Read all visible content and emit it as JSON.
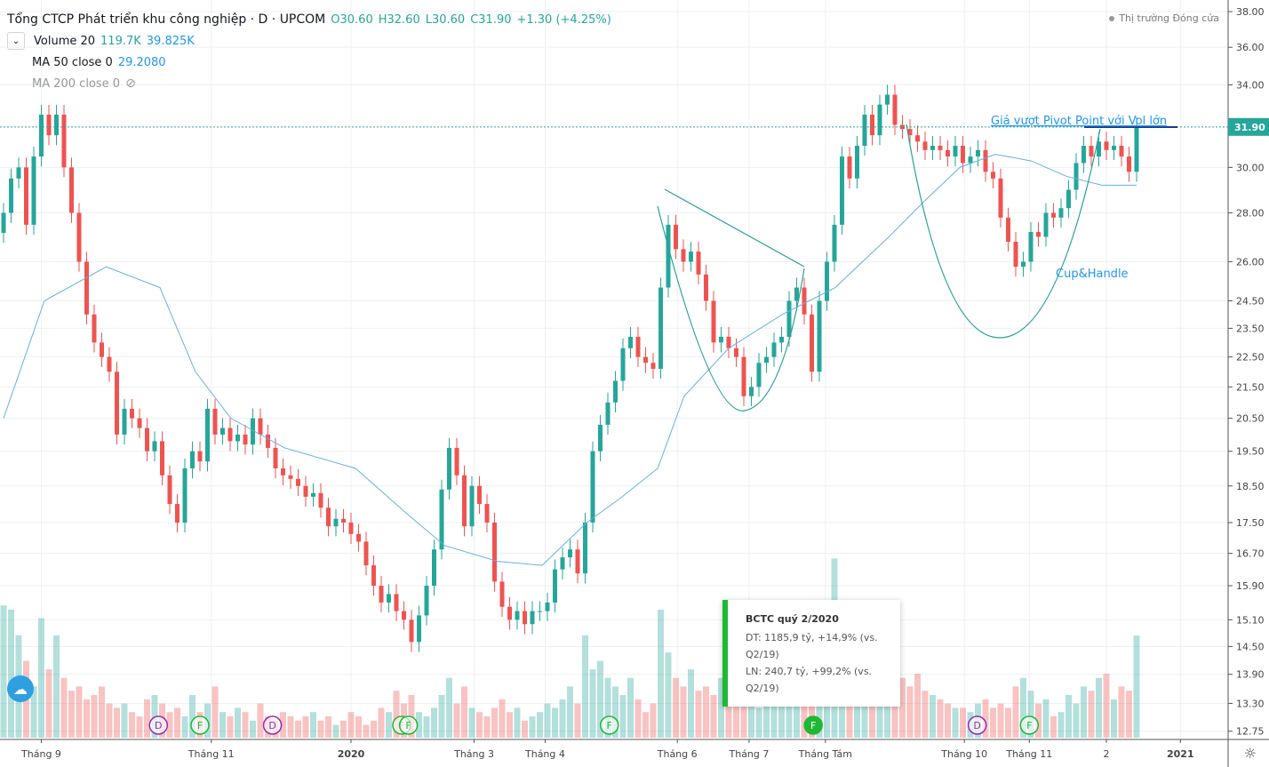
{
  "header": {
    "title": "Tổng CTCP Phát triển khu công nghiệp · D · UPCOM",
    "open": "O30.60",
    "high": "H32.60",
    "low": "L30.60",
    "close": "C31.90",
    "change": "+1.30 (+4.25%)"
  },
  "indicators": {
    "volume_label": "Volume 20",
    "volume_val": "119.7K",
    "volume_ma": "39.825K",
    "ma50_label": "MA 50 close 0",
    "ma50_val": "29.2080",
    "ma200_label": "MA 200 close 0"
  },
  "market_status": "Thị trường Đóng cửa",
  "tooltip": {
    "title": "BCTC quý 2/2020",
    "line1": "DT: 1185,9 tỷ, +14,9% (vs. Q2/19)",
    "line2": "LN: 240,7 tỷ, +99,2% (vs. Q2/19)"
  },
  "annotations": {
    "pivot": "Giá vượt Pivot Point với Vol lớn",
    "cup": "Cup&Handle"
  },
  "colors": {
    "up": "#26a69a",
    "down": "#ef5350",
    "ma": "#64b0ea"
  },
  "chart_data": {
    "type": "candlestick",
    "y_ticks": [
      "38.00",
      "36.00",
      "34.00",
      "30.00",
      "28.00",
      "26.00",
      "24.50",
      "23.50",
      "22.50",
      "21.50",
      "20.50",
      "19.50",
      "18.50",
      "17.50",
      "16.70",
      "15.90",
      "15.10",
      "14.50",
      "13.90",
      "13.30",
      "12.75"
    ],
    "last_price": "31.90",
    "x_ticks": [
      {
        "label": "Tháng 9",
        "i": 5
      },
      {
        "label": "Tháng 11",
        "i": 27.5
      },
      {
        "label": "2020",
        "i": 46
      },
      {
        "label": "Tháng 3",
        "i": 62.3
      },
      {
        "label": "Tháng 4",
        "i": 71.7
      },
      {
        "label": "Tháng 6",
        "i": 89.2
      },
      {
        "label": "Tháng 7",
        "i": 98.7
      },
      {
        "label": "Tháng Tám",
        "i": 108.8
      },
      {
        "label": "Tháng 10",
        "i": 127.2
      },
      {
        "label": "Tháng 11",
        "i": 135.8
      },
      {
        "label": "2",
        "i": 146
      },
      {
        "label": "2021",
        "i": 155.8
      }
    ],
    "closes": [
      28,
      29.5,
      30,
      27.5,
      30.5,
      32.5,
      31.5,
      32.5,
      30,
      28,
      26,
      24,
      23,
      22.5,
      22,
      20,
      20.8,
      20.5,
      20.2,
      19.5,
      19.8,
      18.8,
      18,
      17.5,
      19,
      19.5,
      19.2,
      20.8,
      20,
      20.2,
      19.8,
      20,
      19.7,
      20.5,
      20,
      19.6,
      19,
      18.8,
      18.7,
      18.5,
      18.2,
      18.3,
      17.9,
      17.4,
      17.6,
      17.5,
      17.2,
      17,
      16.4,
      15.9,
      15.5,
      15.7,
      15.3,
      15.1,
      14.6,
      15.2,
      15.9,
      16.8,
      18.4,
      19.6,
      18.8,
      17.4,
      18.5,
      18,
      17.5,
      16,
      15.4,
      15.1,
      15.3,
      15,
      15.3,
      15.3,
      15.5,
      16.3,
      16.6,
      16.8,
      16.2,
      17.5,
      19.5,
      20.3,
      21,
      21.7,
      22.8,
      23.2,
      22.5,
      22.3,
      22.1,
      25,
      27.5,
      26.5,
      26,
      26.4,
      25.5,
      24.5,
      23,
      23.2,
      22.8,
      22.5,
      21.2,
      21.5,
      22.3,
      22.5,
      23,
      23.2,
      24.5,
      25,
      24,
      22,
      24.5,
      26,
      27.5,
      30.5,
      29.5,
      31,
      32.5,
      31.5,
      33,
      33.5,
      32,
      31.8,
      31.5,
      31.2,
      30.8,
      31,
      30.8,
      30.5,
      31,
      30.2,
      30.5,
      30.8,
      29.8,
      29.5,
      27.8,
      26.8,
      25.8,
      26,
      27.2,
      27,
      28,
      27.8,
      28.2,
      29,
      30.2,
      31,
      30.5,
      31.2,
      30.8,
      31,
      30.5,
      29.8,
      31.9
    ],
    "volume_k": [
      155,
      150,
      120,
      90,
      60,
      140,
      80,
      120,
      70,
      55,
      60,
      45,
      50,
      60,
      40,
      35,
      40,
      30,
      25,
      45,
      50,
      40,
      30,
      35,
      25,
      50,
      30,
      40,
      60,
      30,
      25,
      35,
      30,
      20,
      40,
      25,
      20,
      30,
      25,
      20,
      25,
      30,
      20,
      25,
      15,
      20,
      30,
      25,
      15,
      20,
      35,
      30,
      55,
      40,
      50,
      30,
      25,
      35,
      50,
      70,
      40,
      60,
      35,
      30,
      25,
      35,
      45,
      30,
      35,
      20,
      25,
      30,
      40,
      35,
      45,
      60,
      40,
      120,
      80,
      90,
      70,
      60,
      50,
      70,
      45,
      30,
      40,
      150,
      100,
      70,
      60,
      80,
      55,
      60,
      50,
      70,
      60,
      45,
      50,
      40,
      35,
      45,
      55,
      60,
      75,
      40,
      70,
      90,
      100,
      130,
      210,
      150,
      120,
      140,
      110,
      160,
      100,
      95,
      80,
      70,
      60,
      75,
      55,
      50,
      45,
      40,
      35,
      35,
      30,
      40,
      45,
      35,
      40,
      35,
      60,
      70,
      55,
      40,
      45,
      25,
      30,
      50,
      40,
      60,
      55,
      70,
      75,
      45,
      60,
      55,
      119.7
    ],
    "ma50": [
      [
        0,
        20.5
      ],
      [
        5.4,
        24.5
      ],
      [
        13.6,
        25.8
      ],
      [
        20.7,
        25
      ],
      [
        25.4,
        22
      ],
      [
        30.1,
        20.5
      ],
      [
        37.2,
        19.6
      ],
      [
        46.6,
        19
      ],
      [
        53.6,
        17.7
      ],
      [
        58.4,
        16.9
      ],
      [
        65.4,
        16.5
      ],
      [
        71.3,
        16.4
      ],
      [
        77.2,
        17.5
      ],
      [
        81.9,
        18.2
      ],
      [
        86.6,
        19
      ],
      [
        90.1,
        21.2
      ],
      [
        96,
        22.8
      ],
      [
        103.1,
        24
      ],
      [
        110.1,
        25
      ],
      [
        117.2,
        27
      ],
      [
        121.9,
        28.5
      ],
      [
        126.6,
        30
      ],
      [
        131.3,
        30.6
      ],
      [
        136,
        30.3
      ],
      [
        140.7,
        29.6
      ],
      [
        145.4,
        29.2
      ],
      [
        150,
        29.2
      ]
    ],
    "events": [
      {
        "label": "D",
        "i": 20.5,
        "kind": "dividend"
      },
      {
        "label": "F",
        "i": 26,
        "kind": "financial"
      },
      {
        "label": "D",
        "i": 35.6,
        "kind": "dividend"
      },
      {
        "label": "F",
        "i": 52.7,
        "kind": "financial"
      },
      {
        "label": "F",
        "i": 53.6,
        "kind": "financial"
      },
      {
        "label": "F",
        "i": 80.2,
        "kind": "financial"
      },
      {
        "label": "F",
        "i": 107.2,
        "kind": "financial-active"
      },
      {
        "label": "D",
        "i": 128.9,
        "kind": "dividend"
      },
      {
        "label": "F",
        "i": 135.8,
        "kind": "financial"
      }
    ]
  }
}
